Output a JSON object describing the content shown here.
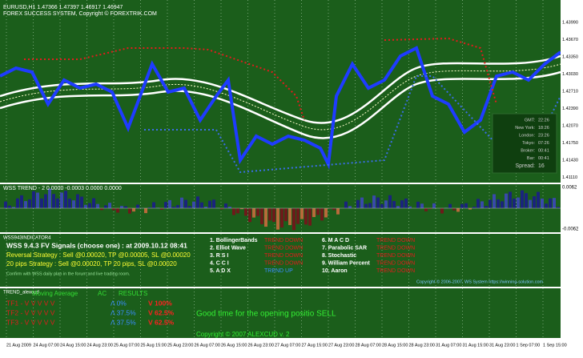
{
  "header": {
    "symbol": "EURUSD,H1 1.47366 1.47397 1.46917 1.46947",
    "copyright": "FOREX SUCCESS SYSTEM, Copyright © FOREXTRIK.COM"
  },
  "price_axis": [
    "1.43990",
    "1.43670",
    "1.43350",
    "1.43030",
    "1.42710",
    "1.42390",
    "1.42070",
    "1.41750",
    "1.41430",
    "1.41110"
  ],
  "clock": [
    [
      "GMT:",
      "22:26"
    ],
    [
      "New York:",
      "18:26"
    ],
    [
      "London:",
      "23:26"
    ],
    [
      "Tokyo:",
      "07:26"
    ],
    [
      "Broker:",
      "00:41"
    ],
    [
      "Bar:",
      "00:41"
    ],
    [
      "Spread:",
      "16"
    ]
  ],
  "trend_panel": {
    "title": "WSS TREND - 2 0.0000 -0.0003 0.0000 0.0000",
    "axis": [
      "0.0062",
      "-0.0062"
    ]
  },
  "signals_panel": {
    "title": "WSS943INDICATOR4",
    "heading": "WSS 9.4.3 FV Signals (choose one) :  at 2009.10.12 08:41",
    "reversal": "Reversal Strategy : Sell @0.00020, TP @0.00005, SL @0.00020",
    "pips": "20 pips Strategy : Sell @0.00020, TP 20 pips, SL @0.00020",
    "confirm": "Confirm with WSS daily plan in the forum and live trading room.",
    "indicators": [
      [
        "1. BollingerBands",
        "TREND DOWN"
      ],
      [
        "2. Elliot Wave",
        "TREND DOWN"
      ],
      [
        "3. R S I",
        "TREND DOWN"
      ],
      [
        "4. C C I",
        "TREND DOWN"
      ],
      [
        "5. A D X",
        "TREND UP"
      ],
      [
        "6. M A C D",
        "TREND DOWN"
      ],
      [
        "7. Parabolic SAR",
        "TREND DOWN"
      ],
      [
        "8. Stochastic",
        "TREND DOWN"
      ],
      [
        "9. William Percent",
        "TREND DOWN"
      ],
      [
        "10. Aaron",
        "TREND DOWN"
      ]
    ],
    "copyright": "Copyright © 2006-2007, WS System https://winning-solution.com"
  },
  "alexcud_panel": {
    "title": "TREND_alexcud",
    "headers": [
      "Moving Average",
      "AC",
      "RESULTS"
    ],
    "rows": [
      [
        "TF1 - V  V  V  V  V",
        "Λ 0%",
        "V 100%"
      ],
      [
        "TF2 - V  V  V  V  V",
        "Λ 37.5%",
        "V 62.5%"
      ],
      [
        "TF3 - V  V  V  V  V",
        "Λ 37.5%",
        "V 62.5%"
      ]
    ],
    "message": "Good time for the opening positio SELL",
    "copyright": "Copyright © 2007 ALEXCUD v. 2"
  },
  "time_axis": [
    "21 Aug 2009",
    "24 Aug 07:00",
    "24 Aug 15:00",
    "24 Aug 23:00",
    "25 Aug 07:00",
    "25 Aug 15:00",
    "25 Aug 23:00",
    "26 Aug 07:00",
    "26 Aug 15:00",
    "26 Aug 23:00",
    "27 Aug 07:00",
    "27 Aug 15:00",
    "27 Aug 23:00",
    "28 Aug 07:00",
    "28 Aug 15:00",
    "28 Aug 23:00",
    "31 Aug 07:00",
    "31 Aug 15:00",
    "31 Aug 23:00",
    "1 Sep 07:00",
    "1 Sep 15:00"
  ]
}
